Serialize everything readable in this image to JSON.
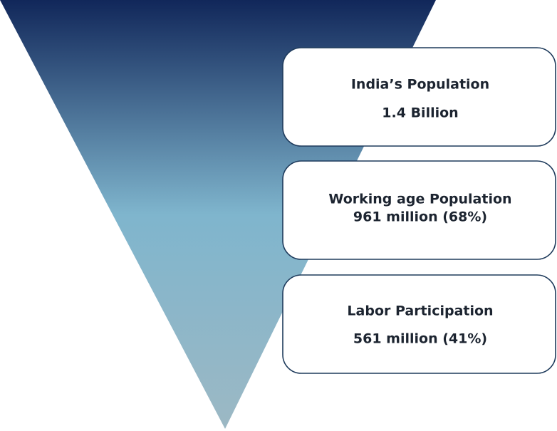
{
  "nodes": [
    {
      "title": "India’s Population",
      "detail": "1.4 Billion"
    },
    {
      "title": "Working age Population",
      "detail": "961 million (68%)"
    },
    {
      "title": "Labor Participation",
      "detail": "561 million (41%)"
    }
  ]
}
